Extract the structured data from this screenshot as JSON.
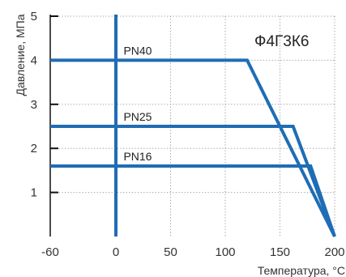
{
  "chart_data": {
    "type": "line",
    "title": "",
    "material_label": "Ф4Г3К6",
    "xlabel": "Температура, °С",
    "ylabel": "Давление, МПа",
    "xlim": [
      -60,
      200
    ],
    "ylim": [
      0,
      5
    ],
    "x_ticks": [
      -60,
      0,
      50,
      100,
      150,
      200
    ],
    "y_ticks": [
      1,
      2,
      3,
      4,
      5
    ],
    "grid": true,
    "line_color": "#1f6db5",
    "series": [
      {
        "name": "PN40",
        "points": [
          [
            -60,
            4.0
          ],
          [
            120,
            4.0
          ],
          [
            200,
            0
          ]
        ]
      },
      {
        "name": "PN25",
        "points": [
          [
            -60,
            2.5
          ],
          [
            162,
            2.5
          ],
          [
            200,
            0
          ]
        ]
      },
      {
        "name": "PN16",
        "points": [
          [
            -60,
            1.6
          ],
          [
            178,
            1.6
          ],
          [
            200,
            0
          ]
        ]
      }
    ],
    "reference_lines": [
      {
        "axis": "x",
        "value": 0
      }
    ]
  }
}
